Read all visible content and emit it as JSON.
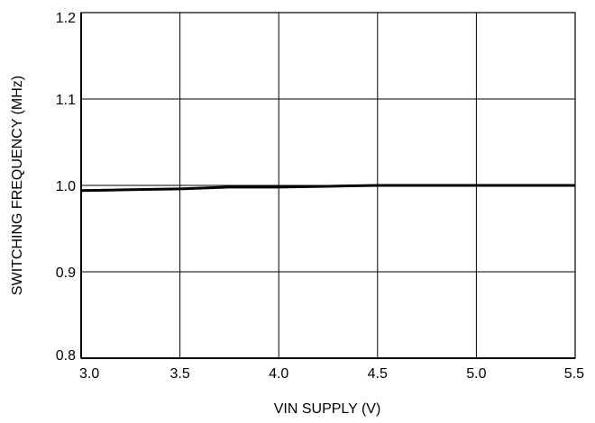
{
  "chart_data": {
    "type": "line",
    "title": "",
    "xlabel": "VIN SUPPLY (V)",
    "ylabel": "SWITCHING FREQUENCY (MHz)",
    "xlim": [
      3.0,
      5.5
    ],
    "ylim": [
      0.8,
      1.2
    ],
    "x_ticks": [
      "3.0",
      "3.5",
      "4.0",
      "4.5",
      "5.0",
      "5.5"
    ],
    "y_ticks": [
      "0.8",
      "0.9",
      "1.0",
      "1.1",
      "1.2"
    ],
    "grid": true,
    "series": [
      {
        "x": [
          3.0,
          3.25,
          3.5,
          3.75,
          4.0,
          4.25,
          4.5,
          4.75,
          5.0,
          5.25,
          5.5
        ],
        "y": [
          0.994,
          0.995,
          0.996,
          0.998,
          0.998,
          0.999,
          1.0,
          1.0,
          1.0,
          1.0,
          1.0
        ],
        "color": "#000000"
      }
    ]
  }
}
